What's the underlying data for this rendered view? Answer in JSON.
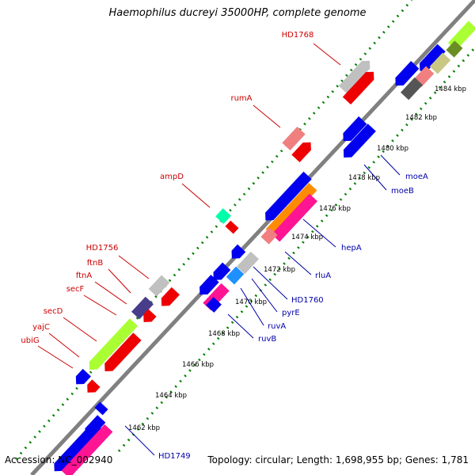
{
  "title": "Haemophilus ducreyi 35000HP, complete genome",
  "footer": {
    "accession": "Accession: NC_002940",
    "summary": "Topology: circular; Length: 1,698,955 bp; Genes: 1,781"
  },
  "colors": {
    "background": "#ffffff",
    "backbone": "#808080",
    "scale_dots": "#008000",
    "label_forward": "#cc0000",
    "label_reverse": "#0000aa",
    "tick_text": "#000000"
  },
  "tick_labels": [
    "1462 kbp",
    "1464 kbp",
    "1466 kbp",
    "1468 kbp",
    "1470 kbp",
    "1472 kbp",
    "1474 kbp",
    "1476 kbp",
    "1478 kbp",
    "1480 kbp",
    "1482 kbp",
    "1484 kbp"
  ],
  "gene_labels_forward": [
    "HD1768",
    "rumA",
    "ampD",
    "HD1756",
    "ftnB",
    "ftnA",
    "secF",
    "secD",
    "yajC",
    "ubiG"
  ],
  "gene_labels_reverse": [
    "moeA",
    "moeB",
    "hepA",
    "rluA",
    "HD1760",
    "pyrE",
    "ruvA",
    "ruvB",
    "HD1749"
  ],
  "feature_colors": [
    "#0000ee",
    "#ee0000",
    "#c0c0c0",
    "#f08080",
    "#aaff33",
    "#ff1493",
    "#ff8c00",
    "#1e90ff",
    "#00ffaa",
    "#483d8b",
    "#c8c884",
    "#6b8e23",
    "#555555"
  ]
}
